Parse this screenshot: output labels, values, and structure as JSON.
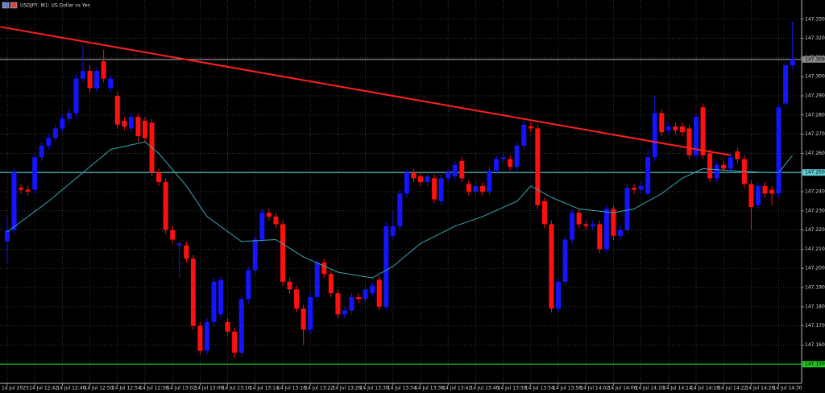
{
  "chart_data": {
    "type": "candlestick",
    "title": "USDJPY, M1: US Dollar vs Yen",
    "categories": [
      "14 Jul 2025",
      null,
      null,
      null,
      "14 Jul 12:42",
      null,
      null,
      null,
      "14 Jul 12:46",
      null,
      null,
      null,
      "14 Jul 12:50",
      null,
      null,
      null,
      "14 Jul 12:54",
      null,
      null,
      null,
      "14 Jul 12:58",
      null,
      null,
      null,
      "14 Jul 13:02",
      null,
      null,
      null,
      "14 Jul 13:06",
      null,
      null,
      null,
      "14 Jul 13:10",
      null,
      null,
      null,
      "14 Jul 13:14",
      null,
      null,
      null,
      "14 Jul 13:18",
      null,
      null,
      null,
      "14 Jul 13:22",
      null,
      null,
      null,
      "14 Jul 13:26",
      null,
      null,
      null,
      "14 Jul 13:30",
      null,
      null,
      null,
      "14 Jul 13:34",
      null,
      null,
      null,
      "14 Jul 13:38",
      null,
      null,
      null,
      "14 Jul 13:42",
      null,
      null,
      null,
      "14 Jul 13:46",
      null,
      null,
      null,
      "14 Jul 13:50",
      null,
      null,
      null,
      "14 Jul 13:54",
      null,
      null,
      null,
      "14 Jul 13:58",
      null,
      null,
      null,
      "14 Jul 14:02",
      null,
      null,
      null,
      "14 Jul 14:06",
      null,
      null,
      null,
      "14 Jul 14:10",
      null,
      null,
      null,
      "14 Jul 14:14",
      null,
      null,
      null,
      "14 Jul 14:18",
      null,
      null,
      null,
      "14 Jul 14:22",
      null,
      null,
      null,
      "14 Jul 14:26",
      null,
      null,
      null,
      "14 Jul 14:30",
      null,
      null
    ],
    "open": [
      147.214,
      147.22,
      147.242,
      147.241,
      147.241,
      147.258,
      147.264,
      147.268,
      147.273,
      147.278,
      147.281,
      147.299,
      147.303,
      147.294,
      147.308,
      147.294,
      147.29,
      147.277,
      147.273,
      147.279,
      147.277,
      147.276,
      147.25,
      147.245,
      147.22,
      147.212,
      147.212,
      147.205,
      147.17,
      147.157,
      147.172,
      147.176,
      147.172,
      147.167,
      147.156,
      147.184,
      147.199,
      147.215,
      147.229,
      147.227,
      147.223,
      147.193,
      147.189,
      147.179,
      147.168,
      147.185,
      147.203,
      147.197,
      147.187,
      147.176,
      147.178,
      147.185,
      147.184,
      147.187,
      147.194,
      147.18,
      147.217,
      147.222,
      147.239,
      147.25,
      147.248,
      147.245,
      147.247,
      147.235,
      147.247,
      147.248,
      147.256,
      147.244,
      147.24,
      147.243,
      147.24,
      147.251,
      147.257,
      147.257,
      147.253,
      147.264,
      147.274,
      147.273,
      147.235,
      147.223,
      147.179,
      147.193,
      147.215,
      147.229,
      147.223,
      147.222,
      147.223,
      147.21,
      147.231,
      147.217,
      147.22,
      147.242,
      147.241,
      147.239,
      147.258,
      147.281,
      147.272,
      147.274,
      147.274,
      147.273,
      147.259,
      147.284,
      147.26,
      147.247,
      147.254,
      147.252,
      147.261,
      147.257,
      147.244,
      147.233,
      147.243,
      147.241,
      147.239,
      147.286,
      147.306
    ],
    "close": [
      147.22,
      147.25,
      147.241,
      147.24,
      147.258,
      147.264,
      147.268,
      147.273,
      147.278,
      147.281,
      147.299,
      147.303,
      147.294,
      147.303,
      147.299,
      147.299,
      147.275,
      147.274,
      147.279,
      147.269,
      147.268,
      147.25,
      147.245,
      147.22,
      147.215,
      147.213,
      147.205,
      147.17,
      147.157,
      147.172,
      147.193,
      147.194,
      147.167,
      147.156,
      147.184,
      147.199,
      147.215,
      147.229,
      147.227,
      147.223,
      147.193,
      147.189,
      147.179,
      147.168,
      147.185,
      147.203,
      147.197,
      147.187,
      147.176,
      147.178,
      147.185,
      147.184,
      147.189,
      147.191,
      147.18,
      147.222,
      147.222,
      147.239,
      147.25,
      147.247,
      147.245,
      147.248,
      147.236,
      147.247,
      147.25,
      147.254,
      147.247,
      147.24,
      147.243,
      147.24,
      147.251,
      147.257,
      147.258,
      147.253,
      147.264,
      147.275,
      147.273,
      147.233,
      147.223,
      147.179,
      147.193,
      147.215,
      147.229,
      147.223,
      147.222,
      147.223,
      147.21,
      147.231,
      147.217,
      147.22,
      147.242,
      147.241,
      147.243,
      147.258,
      147.281,
      147.271,
      147.274,
      147.272,
      147.271,
      147.259,
      147.279,
      147.259,
      147.247,
      147.254,
      147.252,
      147.258,
      147.257,
      147.244,
      147.232,
      147.243,
      147.239,
      147.239,
      147.284,
      147.306,
      147.309
    ],
    "high": [
      147.227,
      147.252,
      147.244,
      147.243,
      147.26,
      147.266,
      147.27,
      147.275,
      147.28,
      147.284,
      147.301,
      147.316,
      147.306,
      147.305,
      147.314,
      147.301,
      147.292,
      147.279,
      147.281,
      147.281,
      147.279,
      147.278,
      147.252,
      147.247,
      147.222,
      147.214,
      147.214,
      147.207,
      147.172,
      147.174,
      147.195,
      147.196,
      147.174,
      147.169,
      147.186,
      147.201,
      147.217,
      147.231,
      147.231,
      147.229,
      147.225,
      147.195,
      147.191,
      147.181,
      147.187,
      147.205,
      147.205,
      147.199,
      147.189,
      147.18,
      147.187,
      147.187,
      147.191,
      147.193,
      147.196,
      147.224,
      147.23,
      147.241,
      147.252,
      147.252,
      147.25,
      147.25,
      147.249,
      147.249,
      147.252,
      147.256,
      147.258,
      147.246,
      147.245,
      147.245,
      147.253,
      147.259,
      147.26,
      147.259,
      147.266,
      147.277,
      147.276,
      147.275,
      147.237,
      147.225,
      147.195,
      147.217,
      147.231,
      147.231,
      147.225,
      147.225,
      147.225,
      147.233,
      147.233,
      147.222,
      147.244,
      147.244,
      147.245,
      147.262,
      147.29,
      147.283,
      147.276,
      147.276,
      147.276,
      147.275,
      147.281,
      147.286,
      147.262,
      147.256,
      147.256,
      147.26,
      147.263,
      147.259,
      147.246,
      147.245,
      147.245,
      147.243,
      147.286,
      147.308,
      147.329
    ],
    "low": [
      147.203,
      147.218,
      147.239,
      147.238,
      147.239,
      147.256,
      147.262,
      147.266,
      147.271,
      147.276,
      147.279,
      147.297,
      147.292,
      147.292,
      147.297,
      147.292,
      147.273,
      147.272,
      147.271,
      147.266,
      147.266,
      147.248,
      147.243,
      147.218,
      147.213,
      147.195,
      147.203,
      147.168,
      147.155,
      147.155,
      147.17,
      147.174,
      147.165,
      147.153,
      147.154,
      147.182,
      147.197,
      147.213,
      147.225,
      147.221,
      147.191,
      147.187,
      147.177,
      147.16,
      147.166,
      147.183,
      147.195,
      147.185,
      147.174,
      147.174,
      147.176,
      147.182,
      147.182,
      147.185,
      147.178,
      147.178,
      147.215,
      147.22,
      147.237,
      147.245,
      147.243,
      147.243,
      147.234,
      147.233,
      147.245,
      147.246,
      147.245,
      147.238,
      147.238,
      147.238,
      147.238,
      147.249,
      147.255,
      147.251,
      147.251,
      147.262,
      147.271,
      147.231,
      147.221,
      147.177,
      147.177,
      147.191,
      147.213,
      147.221,
      147.22,
      147.22,
      147.208,
      147.208,
      147.215,
      147.215,
      147.218,
      147.239,
      147.239,
      147.237,
      147.256,
      147.269,
      147.27,
      147.27,
      147.269,
      147.257,
      147.257,
      147.257,
      147.245,
      147.245,
      147.25,
      147.25,
      147.255,
      147.242,
      147.22,
      147.231,
      147.237,
      147.233,
      147.237,
      147.284,
      147.304
    ],
    "up_color": "#1414ff",
    "down_color": "#ff1010",
    "ylim": [
      147.14,
      147.34
    ],
    "yticks": [
      {
        "value": 147.16,
        "label": "147.160"
      },
      {
        "value": 147.17,
        "label": "147.170"
      },
      {
        "value": 147.18,
        "label": "147.180"
      },
      {
        "value": 147.19,
        "label": "147.190"
      },
      {
        "value": 147.2,
        "label": "147.200"
      },
      {
        "value": 147.21,
        "label": "147.210"
      },
      {
        "value": 147.22,
        "label": "147.220"
      },
      {
        "value": 147.23,
        "label": "147.230"
      },
      {
        "value": 147.24,
        "label": "147.240"
      },
      {
        "value": 147.25,
        "label": "147.250"
      },
      {
        "value": 147.26,
        "label": "147.260"
      },
      {
        "value": 147.27,
        "label": "147.270"
      },
      {
        "value": 147.28,
        "label": "147.280"
      },
      {
        "value": 147.29,
        "label": "147.290"
      },
      {
        "value": 147.3,
        "label": "147.300"
      },
      {
        "value": 147.31,
        "label": "147.310"
      },
      {
        "value": 147.32,
        "label": "147.320"
      },
      {
        "value": 147.33,
        "label": "147.330"
      }
    ],
    "grid": true,
    "levels": [
      {
        "value": 147.309,
        "label": "147.309",
        "color": "#8c8c8c"
      },
      {
        "value": 147.25,
        "label": "147.250",
        "color": "#5fd0d8"
      },
      {
        "value": 147.15,
        "label": "147.150",
        "color": "#22c322"
      }
    ],
    "overlays": [
      {
        "type": "line",
        "color": "#3aa6b4",
        "x": [
          0,
          6,
          11,
          15,
          20,
          22,
          26,
          29,
          34,
          39,
          43,
          48,
          53,
          56,
          60,
          65,
          69,
          74,
          76,
          79,
          83,
          88,
          91,
          95,
          98,
          101,
          105,
          110,
          112,
          114
        ],
        "values": [
          147.219,
          147.235,
          147.25,
          147.262,
          147.266,
          147.26,
          147.243,
          147.227,
          147.214,
          147.215,
          147.206,
          147.198,
          147.195,
          147.201,
          147.213,
          147.222,
          147.227,
          147.235,
          147.243,
          147.237,
          147.231,
          147.229,
          147.231,
          147.239,
          147.247,
          147.252,
          147.251,
          147.25,
          147.25,
          147.259
        ]
      },
      {
        "type": "trendline",
        "color": "#ff2020",
        "x": [
          -1,
          105
        ],
        "values": [
          147.326,
          147.259
        ]
      }
    ]
  }
}
